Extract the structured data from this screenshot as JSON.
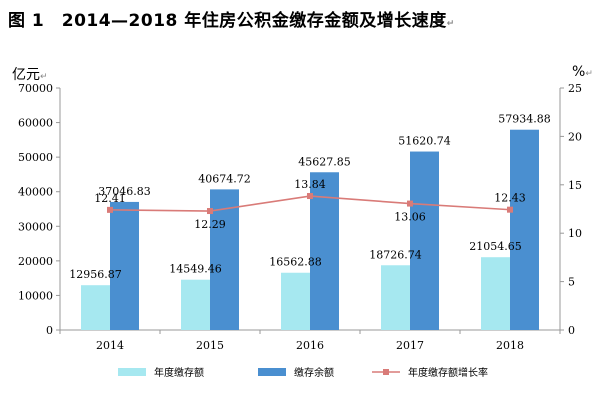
{
  "chart_data": {
    "type": "bar",
    "title": "图 1　2014—2018 年住房公积金缴存金额及增长速度",
    "left_unit": "亿元",
    "right_unit": "%",
    "categories": [
      "2014",
      "2015",
      "2016",
      "2017",
      "2018"
    ],
    "ylim": [
      0,
      70000
    ],
    "yticks": [
      0,
      10000,
      20000,
      30000,
      40000,
      50000,
      60000,
      70000
    ],
    "y2lim": [
      0,
      25
    ],
    "y2ticks": [
      0,
      5,
      10,
      15,
      20,
      25
    ],
    "series": [
      {
        "name": "年度缴存额",
        "type": "bar",
        "axis": "left",
        "color": "#a6e8f0",
        "values": [
          12956.87,
          14549.46,
          16562.88,
          18726.74,
          21054.65
        ],
        "labels": [
          "12956.87",
          "14549.46",
          "16562.88",
          "18726.74",
          "21054.65"
        ]
      },
      {
        "name": "缴存余额",
        "type": "bar",
        "axis": "left",
        "color": "#4a8fd0",
        "values": [
          37046.83,
          40674.72,
          45627.85,
          51620.74,
          57934.88
        ],
        "labels": [
          "37046.83",
          "40674.72",
          "45627.85",
          "51620.74",
          "57934.88"
        ]
      },
      {
        "name": "年度缴存额增长率",
        "type": "line",
        "axis": "right",
        "color": "#d97b78",
        "values": [
          12.41,
          12.29,
          13.84,
          13.06,
          12.43
        ],
        "labels": [
          "12.41",
          "12.29",
          "13.84",
          "13.06",
          "12.43"
        ]
      }
    ]
  }
}
